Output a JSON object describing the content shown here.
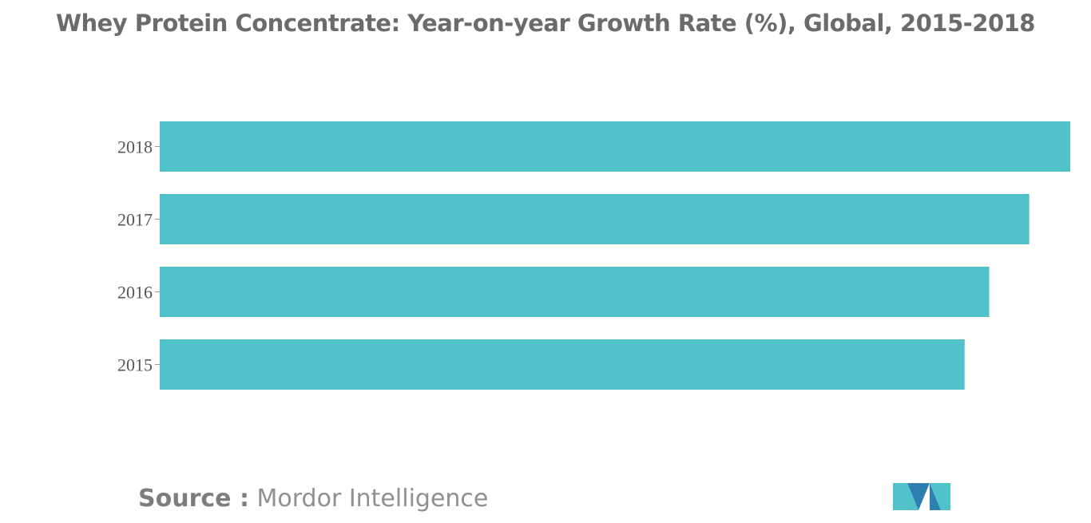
{
  "chart_data": {
    "type": "bar",
    "orientation": "horizontal",
    "title": "Whey Protein Concentrate: Year-on-year Growth Rate (%), Global, 2015-2018",
    "categories": [
      "2018",
      "2017",
      "2016",
      "2015"
    ],
    "values": [
      100,
      95.5,
      91.1,
      88.4
    ],
    "xlabel": "",
    "ylabel": "",
    "xlim": [
      0,
      100
    ],
    "grid": false,
    "legend": "none",
    "bar_color": "#4fc3c9"
  },
  "source": {
    "prefix": "Source :",
    "name": "Mordor Intelligence"
  },
  "logo": {
    "icon": "mordor-intelligence-logo-icon",
    "colors": [
      "#2e7fb0",
      "#4fc3c9"
    ]
  }
}
